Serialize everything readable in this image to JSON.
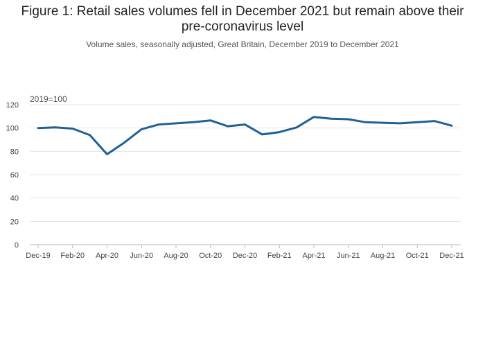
{
  "header": {
    "title_line1": "Figure 1: Retail sales volumes fell in December 2021 but remain above their",
    "title_line2": "pre-coronavirus level",
    "subtitle": "Volume sales, seasonally adjusted, Great Britain, December 2019 to December 2021"
  },
  "chart_data": {
    "type": "line",
    "title": "Figure 1: Retail sales volumes fell in December 2021 but remain above their pre-coronavirus level",
    "subtitle": "Volume sales, seasonally adjusted, Great Britain, December 2019 to December 2021",
    "ylabel": "2019=100",
    "ylim": [
      0,
      120
    ],
    "yticks": [
      "0",
      "20",
      "40",
      "60",
      "80",
      "100",
      "120"
    ],
    "xtick_labels": [
      "Dec-19",
      "Feb-20",
      "Apr-20",
      "Jun-20",
      "Aug-20",
      "Oct-20",
      "Dec-20",
      "Feb-21",
      "Apr-21",
      "Jun-21",
      "Aug-21",
      "Oct-21",
      "Dec-21"
    ],
    "x": [
      "Dec-19",
      "Jan-20",
      "Feb-20",
      "Mar-20",
      "Apr-20",
      "May-20",
      "Jun-20",
      "Jul-20",
      "Aug-20",
      "Sep-20",
      "Oct-20",
      "Nov-20",
      "Dec-20",
      "Jan-21",
      "Feb-21",
      "Mar-21",
      "Apr-21",
      "May-21",
      "Jun-21",
      "Jul-21",
      "Aug-21",
      "Sep-21",
      "Oct-21",
      "Nov-21",
      "Dec-21"
    ],
    "series": [
      {
        "values": [
          100.0,
          100.5,
          99.5,
          94.0,
          77.5,
          87.5,
          99.0,
          103.0,
          104.0,
          105.0,
          106.5,
          101.5,
          103.0,
          94.5,
          96.5,
          100.5,
          109.5,
          108.0,
          107.5,
          105.0,
          104.5,
          104.0,
          105.0,
          106.0,
          102.0
        ],
        "color": "#206095"
      }
    ],
    "grid": true
  }
}
